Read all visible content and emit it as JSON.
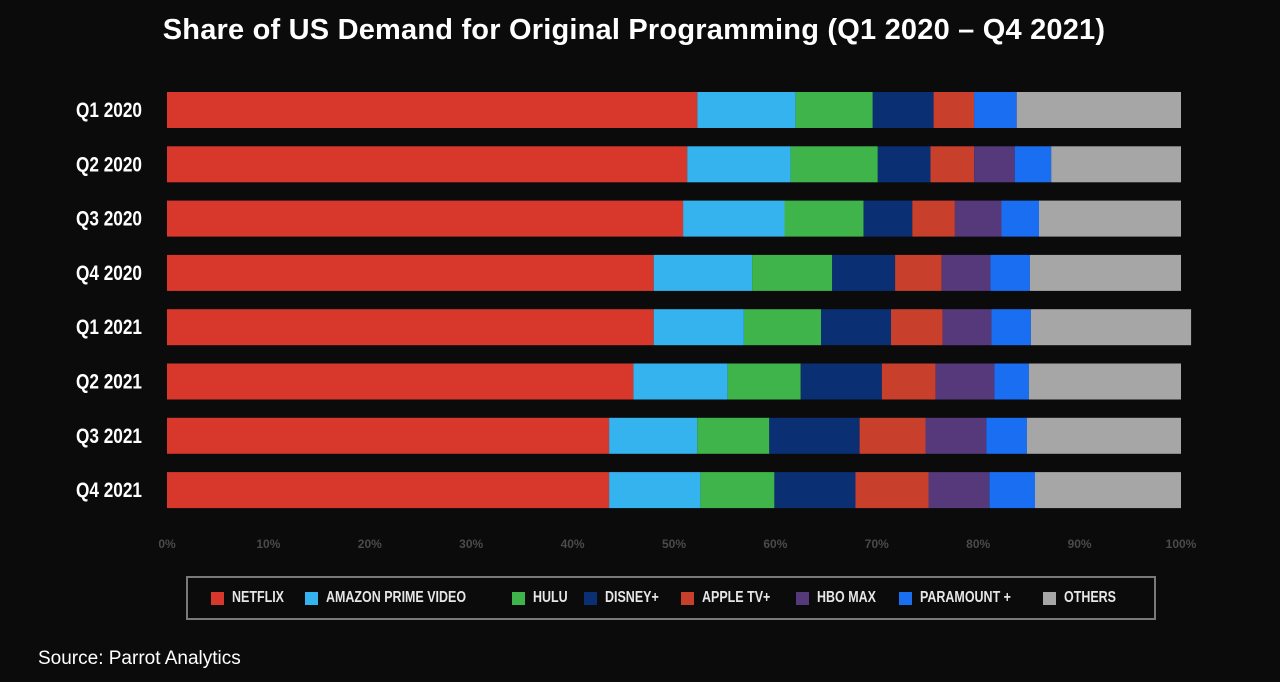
{
  "title": "Share of US Demand for Original Programming (Q1 2020 – Q4 2021)",
  "source": "Source: Parrot Analytics",
  "chart_data": {
    "type": "bar",
    "orientation": "horizontal",
    "stacked": true,
    "categories": [
      "Q1 2020",
      "Q2 2020",
      "Q3 2020",
      "Q4 2020",
      "Q1 2021",
      "Q2 2021",
      "Q3 2021",
      "Q4 2021"
    ],
    "xlim": [
      0,
      100
    ],
    "x_ticks": [
      "0%",
      "10%",
      "20%",
      "30%",
      "40%",
      "50%",
      "60%",
      "70%",
      "80%",
      "90%",
      "100%"
    ],
    "legend_position": "bottom",
    "series": [
      {
        "name": "NETFLIX",
        "color": "#d8382b",
        "values": [
          52.3,
          51.3,
          50.9,
          48.0,
          48.0,
          46.0,
          43.6,
          43.6
        ]
      },
      {
        "name": "AMAZON PRIME VIDEO",
        "color": "#35b3ee",
        "values": [
          9.7,
          10.2,
          10.0,
          9.7,
          8.9,
          9.3,
          8.7,
          9.0
        ]
      },
      {
        "name": "HULU",
        "color": "#3fb44a",
        "values": [
          7.6,
          8.6,
          7.8,
          7.9,
          7.6,
          7.2,
          7.1,
          7.3
        ]
      },
      {
        "name": "DISNEY+",
        "color": "#0b2f73",
        "values": [
          6.0,
          5.2,
          4.8,
          6.2,
          6.9,
          8.0,
          8.9,
          8.0
        ]
      },
      {
        "name": "APPLE TV+",
        "color": "#c8402b",
        "values": [
          4.0,
          4.3,
          4.2,
          4.6,
          5.1,
          5.3,
          6.5,
          7.2
        ]
      },
      {
        "name": "HBO MAX",
        "color": "#55397a",
        "values": [
          0.0,
          4.0,
          4.6,
          4.8,
          4.8,
          5.8,
          6.0,
          6.0
        ]
      },
      {
        "name": "PARAMOUNT +",
        "color": "#1a6ef2",
        "values": [
          4.2,
          3.6,
          3.7,
          3.9,
          3.9,
          3.4,
          4.0,
          4.5
        ]
      },
      {
        "name": "OTHERS",
        "color": "#a6a6a6",
        "values": [
          16.2,
          12.8,
          14.0,
          14.9,
          15.8,
          15.0,
          15.2,
          14.4
        ]
      }
    ]
  }
}
